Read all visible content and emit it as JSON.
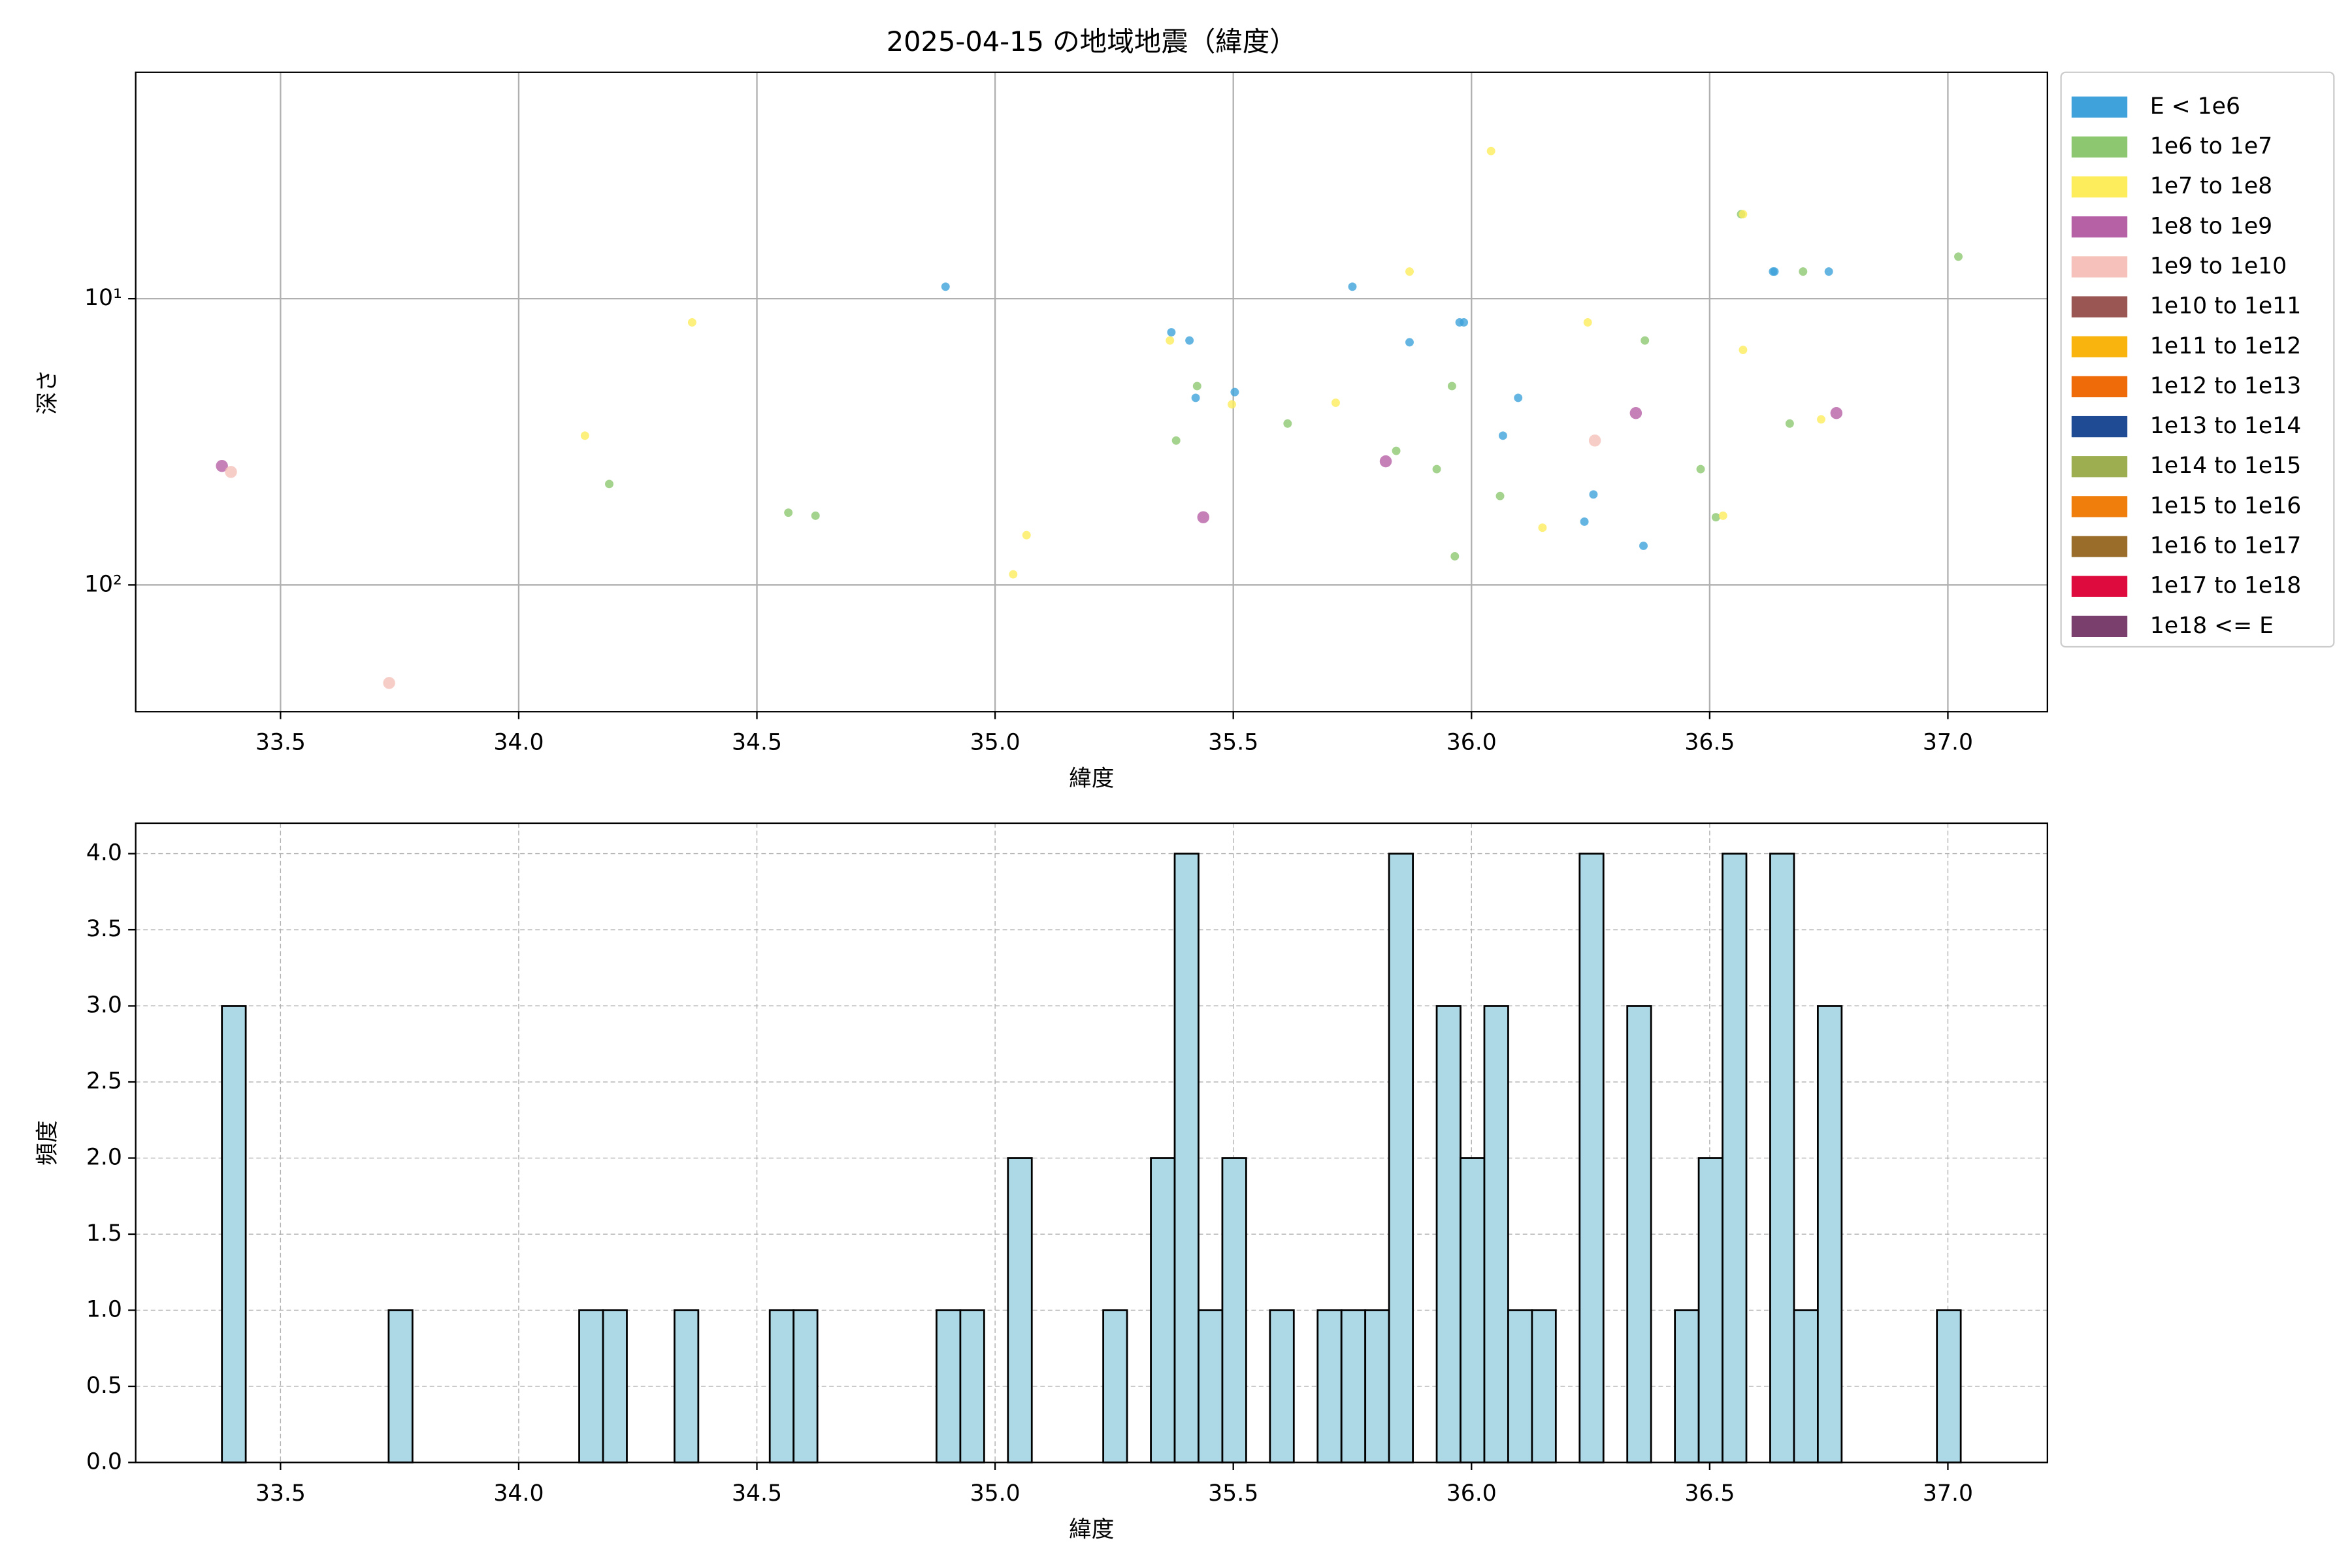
{
  "chart_data": [
    {
      "type": "scatter",
      "title": "2025-04-15 の地域地震（緯度）",
      "x_label": "緯度",
      "y_label": "深さ",
      "xlim": [
        33.196,
        37.209
      ],
      "xticks": [
        33.5,
        {
          "value": 34,
          "label": "34.0"
        },
        34.5,
        {
          "value": 35,
          "label": "35.0"
        },
        35.5,
        {
          "value": 36,
          "label": "36.0"
        },
        36.5,
        {
          "value": 37,
          "label": "37.0"
        }
      ],
      "ylim": [
        277,
        1.62
      ],
      "yticks": [
        {
          "value": 10,
          "label": "10¹"
        },
        {
          "value": 100,
          "label": "10²"
        }
      ],
      "log_y": true,
      "grid": true,
      "legend": "outside right",
      "series": [
        {
          "name": "E < 1e6",
          "color": "#3fa2db",
          "x": [
            34.896,
            35.37,
            35.408,
            35.421,
            35.503,
            35.75,
            35.87,
            35.975,
            35.984,
            36.098,
            36.066,
            36.256,
            36.237,
            36.361,
            36.633,
            36.75,
            36.636
          ],
          "values": [
            9.08,
            13.1,
            14.0,
            22.2,
            21.2,
            9.08,
            14.2,
            12.1,
            12.1,
            22.2,
            30.1,
            48.3,
            60.1,
            73.0,
            8.04,
            8.04,
            8.04
          ]
        },
        {
          "name": "1e6 to 1e7",
          "color": "#8dc870",
          "x": [
            34.19,
            34.566,
            34.623,
            35.38,
            35.424,
            35.614,
            35.842,
            35.927,
            35.959,
            35.965,
            36.06,
            36.364,
            36.481,
            36.513,
            36.566,
            36.668,
            36.696,
            37.022
          ],
          "values": [
            44.4,
            55.9,
            57.3,
            31.3,
            20.2,
            27.3,
            34.0,
            39.4,
            20.2,
            79.4,
            48.9,
            14.0,
            39.4,
            58.0,
            5.07,
            27.3,
            8.04,
            7.13
          ]
        },
        {
          "name": "1e7 to 1e8",
          "color": "#fdec5b",
          "x": [
            34.364,
            34.139,
            35.038,
            35.066,
            35.367,
            35.497,
            35.715,
            35.87,
            36.041,
            36.149,
            36.244,
            36.528,
            36.57,
            36.57,
            36.734
          ],
          "values": [
            12.1,
            30.1,
            91.8,
            67.0,
            14.0,
            23.4,
            23.1,
            8.04,
            3.05,
            63.1,
            12.1,
            57.3,
            5.07,
            15.1,
            26.4
          ]
        },
        {
          "name": "1e8 to 1e9",
          "color": "#b660a6",
          "x": [
            33.377,
            35.437,
            35.82,
            36.345,
            36.766
          ],
          "values": [
            38.4,
            58.0,
            37.0,
            25.1,
            25.1
          ]
        },
        {
          "name": "1e9 to 1e10",
          "color": "#f5c1ba",
          "x": [
            33.396,
            33.728,
            36.259
          ],
          "values": [
            40.3,
            220,
            31.3
          ]
        },
        {
          "name": "1e10 to 1e11",
          "color": "#9a5652",
          "x": [],
          "values": []
        },
        {
          "name": "1e11 to 1e12",
          "color": "#f9b50e",
          "x": [],
          "values": []
        },
        {
          "name": "1e12 to 1e13",
          "color": "#ef6b0a",
          "x": [],
          "values": []
        },
        {
          "name": "1e13 to 1e14",
          "color": "#1e4b94",
          "x": [],
          "values": []
        },
        {
          "name": "1e14 to 1e15",
          "color": "#9cae4f",
          "x": [],
          "values": []
        },
        {
          "name": "1e15 to 1e16",
          "color": "#f07e0c",
          "x": [],
          "values": []
        },
        {
          "name": "1e16 to 1e17",
          "color": "#9a6e2a",
          "x": [],
          "values": []
        },
        {
          "name": "1e17 to 1e18",
          "color": "#de0b3f",
          "x": [],
          "values": []
        },
        {
          "name": "1e18 <= E",
          "color": "#7a3f6c",
          "x": [],
          "values": []
        }
      ]
    },
    {
      "type": "histogram",
      "x_label": "緯度",
      "y_label": "頻度",
      "color": "#add8e6",
      "edge_color": "#000000",
      "xlim": [
        33.196,
        37.209
      ],
      "xticks": [
        33.5,
        {
          "value": 34,
          "label": "34.0"
        },
        34.5,
        {
          "value": 35,
          "label": "35.0"
        },
        35.5,
        {
          "value": 36,
          "label": "36.0"
        },
        36.5,
        {
          "value": 37,
          "label": "37.0"
        }
      ],
      "ylim": [
        0,
        4.2
      ],
      "yticks": [
        {
          "value": 0,
          "label": "0.0"
        },
        0.5,
        {
          "value": 1,
          "label": "1.0"
        },
        1.5,
        {
          "value": 2,
          "label": "2.0"
        },
        2.5,
        {
          "value": 3,
          "label": "3.0"
        },
        3.5,
        {
          "value": 4,
          "label": "4.0"
        }
      ],
      "grid": true,
      "grid_style": "dashed",
      "bins": [
        33.377,
        33.427,
        33.477,
        33.527,
        33.577,
        33.627,
        33.677,
        33.727,
        33.777,
        33.827,
        33.877,
        33.927,
        33.977,
        34.027,
        34.077,
        34.127,
        34.177,
        34.227,
        34.277,
        34.327,
        34.377,
        34.427,
        34.477,
        34.527,
        34.577,
        34.627,
        34.677,
        34.727,
        34.777,
        34.827,
        34.877,
        34.927,
        34.977,
        35.027,
        35.077,
        35.127,
        35.177,
        35.227,
        35.277,
        35.327,
        35.377,
        35.427,
        35.477,
        35.527,
        35.577,
        35.627,
        35.677,
        35.727,
        35.777,
        35.827,
        35.877,
        35.927,
        35.977,
        36.027,
        36.077,
        36.127,
        36.177,
        36.227,
        36.277,
        36.327,
        36.377,
        36.427,
        36.477,
        36.527,
        36.577,
        36.627,
        36.677,
        36.727,
        36.777,
        36.827,
        36.877,
        36.927,
        36.977,
        37.027
      ],
      "values": [
        3,
        0,
        0,
        0,
        0,
        0,
        0,
        1,
        0,
        0,
        0,
        0,
        0,
        0,
        0,
        1,
        1,
        0,
        0,
        1,
        0,
        0,
        0,
        1,
        1,
        0,
        0,
        0,
        0,
        0,
        1,
        1,
        0,
        2,
        0,
        0,
        0,
        1,
        0,
        2,
        4,
        1,
        2,
        0,
        1,
        0,
        1,
        1,
        1,
        4,
        0,
        3,
        2,
        3,
        1,
        1,
        0,
        4,
        0,
        3,
        0,
        1,
        2,
        4,
        0,
        4,
        1,
        3,
        0,
        0,
        0,
        0,
        1
      ]
    }
  ]
}
